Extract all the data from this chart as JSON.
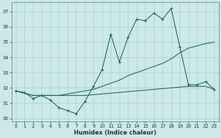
{
  "xlabel": "Humidex (Indice chaleur)",
  "background_color": "#cce8e8",
  "grid_color": "#aacccc",
  "line_color": "#1a6b5a",
  "xlim": [
    -0.5,
    23.5
  ],
  "ylim": [
    29.8,
    37.6
  ],
  "yticks": [
    30,
    31,
    32,
    33,
    34,
    35,
    36,
    37
  ],
  "xticks": [
    0,
    1,
    2,
    3,
    4,
    5,
    6,
    7,
    8,
    9,
    10,
    11,
    12,
    13,
    14,
    15,
    16,
    17,
    18,
    19,
    20,
    21,
    22,
    23
  ],
  "series1_x": [
    0,
    1,
    2,
    3,
    4,
    5,
    6,
    7,
    8,
    9,
    10,
    11,
    12,
    13,
    14,
    15,
    16,
    17,
    18,
    19,
    20,
    21,
    22,
    23
  ],
  "series1_y": [
    31.8,
    31.7,
    31.3,
    31.5,
    31.2,
    30.7,
    30.5,
    30.3,
    31.1,
    32.1,
    33.2,
    35.5,
    33.7,
    35.3,
    36.5,
    36.4,
    36.9,
    36.5,
    37.2,
    34.7,
    32.2,
    32.2,
    32.4,
    31.9
  ],
  "series2_x": [
    0,
    2,
    3,
    4,
    5,
    6,
    7,
    8,
    9,
    10,
    11,
    12,
    13,
    14,
    15,
    16,
    17,
    18,
    19,
    20,
    21,
    22,
    23
  ],
  "series2_y": [
    31.8,
    31.5,
    31.5,
    31.5,
    31.5,
    31.5,
    31.5,
    31.5,
    31.55,
    31.6,
    31.65,
    31.7,
    31.75,
    31.8,
    31.85,
    31.9,
    31.95,
    32.0,
    32.05,
    32.1,
    32.1,
    32.1,
    31.9
  ],
  "series3_x": [
    0,
    2,
    3,
    4,
    5,
    6,
    7,
    8,
    9,
    10,
    11,
    12,
    13,
    14,
    15,
    16,
    17,
    18,
    19,
    20,
    21,
    22,
    23
  ],
  "series3_y": [
    31.8,
    31.5,
    31.5,
    31.5,
    31.5,
    31.6,
    31.7,
    31.8,
    31.9,
    32.1,
    32.3,
    32.5,
    32.8,
    33.0,
    33.2,
    33.4,
    33.6,
    33.9,
    34.3,
    34.6,
    34.75,
    34.9,
    35.0
  ]
}
